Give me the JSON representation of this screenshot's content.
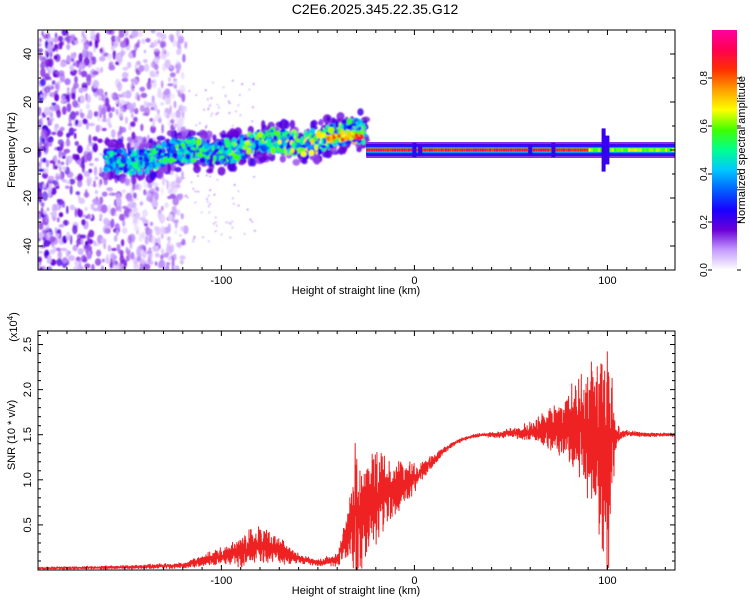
{
  "title": "C2E6.2025.345.22.35.G12",
  "chart_data": [
    {
      "type": "heatmap",
      "xlabel": "Height of straight line (km)",
      "ylabel": "Frequency (Hz)",
      "xlim": [
        -195,
        135
      ],
      "ylim": [
        -50,
        50
      ],
      "xticks": [
        -100,
        0,
        100
      ],
      "yticks": [
        -40,
        -20,
        0,
        20,
        40
      ],
      "colorbar": {
        "label": "Normalized spectral amplitude",
        "range": [
          0.0,
          1.0
        ],
        "ticks": [
          "0.0",
          "0.2",
          "0.4",
          "0.6",
          "0.8"
        ],
        "colors": [
          "#ffffff",
          "#c59cff",
          "#6a00d8",
          "#1a00ff",
          "#0060ff",
          "#00c8ff",
          "#00ff90",
          "#40ff00",
          "#ffff00",
          "#ffa000",
          "#ff3000",
          "#ff0050",
          "#ff00a0"
        ]
      },
      "regions": [
        {
          "x_from": -195,
          "x_to": -122,
          "description": "broadband noise, all frequencies",
          "amplitude": 0.15
        },
        {
          "x_from": -160,
          "x_to": -25,
          "description": "rising band, center 0 to 5 Hz, width 10 Hz",
          "amplitude": 0.45
        },
        {
          "x_from": -25,
          "x_to": 135,
          "description": "narrow line at 0 Hz",
          "amplitude": 0.95
        }
      ]
    },
    {
      "type": "line",
      "xlabel": "Height of straight line (km)",
      "ylabel": "SNR (10 * v/v)",
      "y_multiplier": "(x10",
      "y_multiplier_exp": "4",
      "xlim": [
        -195,
        135
      ],
      "ylim": [
        0,
        2.65
      ],
      "xticks": [
        -100,
        0,
        100
      ],
      "yticks": [
        0.5,
        1.0,
        1.5,
        2.0,
        2.5
      ],
      "ytick_labels": [
        "0.5",
        "1.0",
        "1.5",
        "2.0",
        "2.5"
      ],
      "series": [
        {
          "name": "SNR",
          "color": "#ee2222",
          "x": [
            -195,
            -150,
            -120,
            -100,
            -90,
            -80,
            -70,
            -60,
            -50,
            -40,
            -33,
            -30,
            -28,
            -26,
            -22,
            -18,
            -14,
            -10,
            -6,
            -2,
            0,
            5,
            10,
            15,
            20,
            25,
            30,
            35,
            40,
            45,
            50,
            55,
            60,
            65,
            70,
            75,
            80,
            85,
            90,
            95,
            98,
            100,
            102,
            105,
            110,
            120,
            135
          ],
          "y": [
            0.02,
            0.03,
            0.05,
            0.15,
            0.22,
            0.28,
            0.22,
            0.12,
            0.08,
            0.12,
            0.45,
            0.75,
            0.55,
            0.6,
            0.8,
            0.85,
            0.9,
            0.92,
            0.95,
            1.0,
            1.02,
            1.12,
            1.22,
            1.32,
            1.4,
            1.45,
            1.48,
            1.5,
            1.5,
            1.5,
            1.52,
            1.52,
            1.53,
            1.55,
            1.55,
            1.55,
            1.58,
            1.6,
            1.55,
            1.5,
            1.3,
            1.05,
            1.45,
            1.5,
            1.52,
            1.5,
            1.5
          ],
          "noise": [
            0.01,
            0.02,
            0.03,
            0.1,
            0.2,
            0.2,
            0.15,
            0.06,
            0.03,
            0.08,
            0.4,
            0.9,
            0.7,
            0.5,
            0.55,
            0.5,
            0.4,
            0.3,
            0.25,
            0.2,
            0.15,
            0.1,
            0.06,
            0.04,
            0.03,
            0.02,
            0.02,
            0.02,
            0.03,
            0.04,
            0.05,
            0.08,
            0.12,
            0.18,
            0.25,
            0.3,
            0.45,
            0.6,
            0.7,
            0.9,
            1.3,
            1.4,
            0.8,
            0.1,
            0.03,
            0.02,
            0.02
          ]
        }
      ]
    }
  ]
}
